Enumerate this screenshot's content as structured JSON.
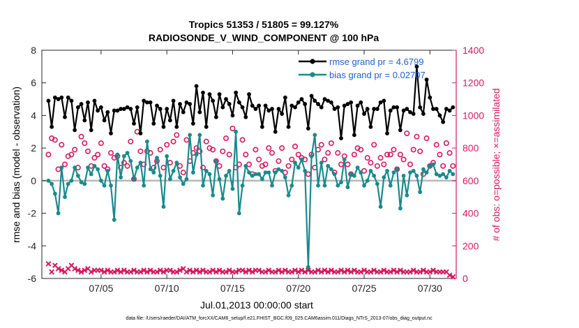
{
  "chart_data": {
    "type": "line",
    "title": "Tropics 51353 / 51805 = 99.127%",
    "subtitle": "RADIOSONDE_V_WIND_COMPONENT @ 100 hPa",
    "xlabel": "Jul.01,2013 00:00:00 start",
    "ylabel": "rmse and bias (model - observation)",
    "ylabel_right": "# of obs: o=possible; ×=assimilated",
    "xlim": [
      0.5,
      32.0
    ],
    "ylim": [
      -6,
      8
    ],
    "ylim_right": [
      0,
      1400
    ],
    "x_ticks": [
      5,
      10,
      15,
      20,
      25,
      30
    ],
    "x_tick_labels": [
      "07/05",
      "07/10",
      "07/15",
      "07/20",
      "07/25",
      "07/30"
    ],
    "y_ticks": [
      -6,
      -4,
      -2,
      0,
      2,
      4,
      6,
      8
    ],
    "y_tick_labels": [
      "-6",
      "-4",
      "-2",
      "0",
      "2",
      "4",
      "6",
      "8"
    ],
    "y_ticks_right": [
      0,
      200,
      400,
      600,
      800,
      1000,
      1200,
      1400
    ],
    "y_tick_labels_right": [
      "0",
      "200",
      "400",
      "600",
      "800",
      "1000",
      "1200",
      "1400"
    ],
    "x": [
      1.0,
      1.25,
      1.5,
      1.75,
      2.0,
      2.25,
      2.5,
      2.75,
      3.0,
      3.25,
      3.5,
      3.75,
      4.0,
      4.25,
      4.5,
      4.75,
      5.0,
      5.25,
      5.5,
      5.75,
      6.0,
      6.25,
      6.5,
      6.75,
      7.0,
      7.25,
      7.5,
      7.75,
      8.0,
      8.25,
      8.5,
      8.75,
      9.0,
      9.25,
      9.5,
      9.75,
      10.0,
      10.25,
      10.5,
      10.75,
      11.0,
      11.25,
      11.5,
      11.75,
      12.0,
      12.25,
      12.5,
      12.75,
      13.0,
      13.25,
      13.5,
      13.75,
      14.0,
      14.25,
      14.5,
      14.75,
      15.0,
      15.25,
      15.5,
      15.75,
      16.0,
      16.25,
      16.5,
      16.75,
      17.0,
      17.25,
      17.5,
      17.75,
      18.0,
      18.25,
      18.5,
      18.75,
      19.0,
      19.25,
      19.5,
      19.75,
      20.0,
      20.25,
      20.5,
      20.75,
      21.0,
      21.25,
      21.5,
      21.75,
      22.0,
      22.25,
      22.5,
      22.75,
      23.0,
      23.25,
      23.5,
      23.75,
      24.0,
      24.25,
      24.5,
      24.75,
      25.0,
      25.25,
      25.5,
      25.75,
      26.0,
      26.25,
      26.5,
      26.75,
      27.0,
      27.25,
      27.5,
      27.75,
      28.0,
      28.25,
      28.5,
      28.75,
      29.0,
      29.25,
      29.5,
      29.75,
      30.0,
      30.25,
      30.5,
      30.75,
      31.0,
      31.25,
      31.5,
      31.75
    ],
    "series": [
      {
        "name": "rmse grand pr = 4.6799",
        "legend_label": "rmse grand pr = 4.6799",
        "color": "#000000",
        "marker": "filled-circle",
        "axis": "left",
        "values": [
          4.9,
          3.3,
          5.1,
          5.0,
          5.1,
          3.9,
          5.1,
          4.9,
          3.1,
          4.5,
          4.7,
          3.7,
          4.8,
          3.1,
          4.9,
          4.3,
          4.5,
          3.7,
          4.2,
          2.9,
          4.3,
          4.3,
          4.4,
          4.4,
          4.5,
          4.4,
          3.5,
          4.5,
          2.9,
          4.9,
          4.8,
          4.8,
          3.5,
          4.6,
          4.4,
          3.3,
          4.4,
          3.7,
          4.9,
          3.3,
          4.7,
          4.2,
          4.8,
          4.7,
          3.5,
          5.8,
          4.2,
          5.4,
          3.3,
          5.3,
          4.9,
          3.9,
          5.3,
          4.5,
          5.0,
          4.7,
          4.0,
          5.4,
          4.8,
          4.5,
          3.9,
          5.3,
          4.6,
          4.4,
          4.6,
          3.3,
          4.6,
          4.3,
          4.4,
          3.0,
          4.4,
          4.1,
          5.1,
          3.3,
          4.6,
          4.5,
          4.8,
          5.0,
          4.7,
          3.2,
          5.2,
          4.9,
          4.7,
          4.5,
          5.0,
          4.9,
          4.8,
          4.4,
          4.5,
          2.6,
          4.6,
          4.7,
          4.8,
          2.8,
          4.6,
          4.8,
          4.1,
          4.4,
          3.3,
          4.4,
          4.4,
          4.8,
          4.9,
          2.9,
          4.3,
          4.5,
          4.5,
          3.1,
          4.3,
          4.4,
          4.2,
          4.1,
          7.0,
          4.5,
          4.1,
          6.2,
          5.1,
          4.4,
          4.4,
          4.0,
          3.6,
          4.4,
          4.3,
          4.5
        ]
      },
      {
        "name": "bias grand pr = 0.02707",
        "legend_label": "bias grand pr = 0.02707",
        "color": "#1a8a8c",
        "marker": "filled-circle",
        "axis": "left",
        "values": [
          0.0,
          -0.2,
          -0.8,
          -2.0,
          0.8,
          -1.0,
          -0.2,
          0.0,
          0.8,
          0.3,
          -0.1,
          -0.2,
          0.8,
          0.4,
          0.9,
          0.7,
          0.0,
          -0.3,
          0.6,
          -0.3,
          -2.4,
          1.6,
          0.2,
          1.5,
          1.7,
          1.2,
          0.1,
          0.8,
          1.1,
          -0.3,
          2.4,
          0.7,
          0.5,
          1.4,
          0.3,
          -1.6,
          1.5,
          0.1,
          0.6,
          1.1,
          0.2,
          -0.2,
          0.1,
          2.8,
          0.5,
          1.6,
          2.8,
          -0.3,
          0.6,
          0.4,
          -0.9,
          1.2,
          0.1,
          -1.1,
          0.3,
          0.6,
          -0.5,
          3.0,
          -2.0,
          -0.3,
          0.9,
          0.5,
          0.3,
          0.4,
          0.4,
          0.1,
          0.5,
          0.5,
          -0.3,
          0.5,
          0.7,
          0.6,
          0.2,
          -0.9,
          -0.3,
          1.1,
          0.8,
          1.3,
          0.6,
          -5.3,
          1.5,
          2.8,
          -0.3,
          1.1,
          -0.3,
          0.9,
          0.7,
          0.4,
          -0.3,
          -0.1,
          1.3,
          -0.4,
          0.4,
          0.3,
          0.8,
          0.5,
          -0.3,
          0.0,
          0.6,
          0.3,
          -0.2,
          -1.6,
          0.2,
          0.6,
          -0.3,
          0.5,
          0.7,
          -1.7,
          0.3,
          -0.9,
          0.5,
          0.6,
          0.3,
          -0.7,
          0.7,
          0.5,
          0.9,
          1.0,
          0.4,
          0.3,
          0.4,
          0.2,
          0.6,
          0.4
        ]
      },
      {
        "name": "# obs possible",
        "color": "#d7195f",
        "marker": "circle",
        "axis": "right",
        "values": [
          760,
          860,
          850,
          670,
          820,
          700,
          750,
          760,
          790,
          680,
          870,
          830,
          780,
          690,
          740,
          760,
          830,
          690,
          670,
          770,
          740,
          750,
          680,
          710,
          690,
          840,
          610,
          900,
          780,
          700,
          780,
          770,
          680,
          720,
          790,
          680,
          820,
          710,
          840,
          880,
          690,
          650,
          850,
          720,
          770,
          800,
          780,
          680,
          840,
          800,
          790,
          720,
          690,
          780,
          860,
          760,
          920,
          680,
          700,
          850,
          760,
          700,
          640,
          790,
          730,
          690,
          700,
          800,
          770,
          660,
          720,
          800,
          650,
          690,
          730,
          810,
          760,
          740,
          730,
          640,
          760,
          680,
          790,
          820,
          730,
          770,
          830,
          650,
          770,
          700,
          750,
          700,
          640,
          760,
          800,
          790,
          660,
          740,
          710,
          820,
          690,
          740,
          700,
          760,
          760,
          790,
          670,
          760,
          730,
          890,
          700,
          790,
          870,
          780,
          640,
          860,
          690,
          710,
          820,
          760,
          690,
          830,
          770,
          690
        ]
      },
      {
        "name": "# obs assimilated",
        "color": "#d7195f",
        "marker": "cross",
        "axis": "right",
        "values": [
          90,
          40,
          80,
          60,
          50,
          40,
          60,
          80,
          60,
          50,
          40,
          50,
          60,
          40,
          50,
          50,
          50,
          40,
          50,
          40,
          40,
          50,
          40,
          50,
          40,
          40,
          50,
          40,
          40,
          50,
          40,
          50,
          40,
          40,
          50,
          40,
          50,
          50,
          40,
          40,
          50,
          60,
          40,
          50,
          40,
          50,
          40,
          50,
          40,
          40,
          50,
          40,
          50,
          40,
          40,
          50,
          40,
          40,
          50,
          50,
          40,
          50,
          40,
          50,
          50,
          40,
          40,
          50,
          40,
          40,
          50,
          40,
          50,
          40,
          40,
          50,
          40,
          50,
          40,
          50,
          40,
          40,
          50,
          40,
          50,
          40,
          50,
          40,
          40,
          50,
          40,
          50,
          40,
          50,
          40,
          40,
          50,
          40,
          40,
          50,
          40,
          40,
          50,
          40,
          40,
          50,
          40,
          50,
          40,
          40,
          40,
          50,
          40,
          40,
          50,
          40,
          40,
          50,
          40,
          40,
          40,
          40,
          20,
          10
        ]
      }
    ],
    "zero_line": 0,
    "legend_placement": "top-right",
    "grid": false
  },
  "colors": {
    "rmse": "#000000",
    "bias": "#1a8a8c",
    "obs": "#d7195f",
    "legend_text": "#1f5fd6",
    "zero_line": "#b8b8b8"
  },
  "footer": "data file: /Users/raeder/DAI/ATM_forcXX/CAM6_setup/f.e21.FHIST_BGC.f09_025.CAM6assim.011/Diags_NTrS_2013-07/obs_diag_output.nc"
}
